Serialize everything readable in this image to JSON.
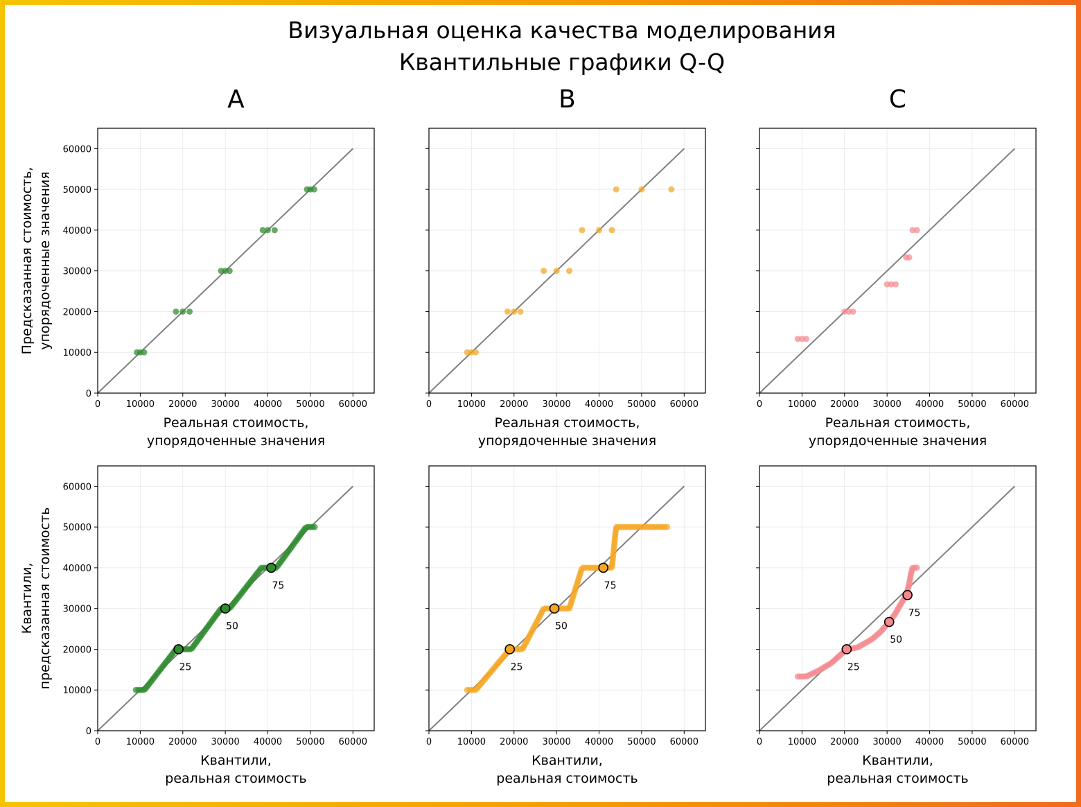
{
  "title": {
    "line1": "Визуальная оценка качества моделирования",
    "line2": "Квантильные графики Q-Q"
  },
  "colors": {
    "A": "#2e8b2e",
    "B": "#f5a623",
    "C": "#f48a90",
    "reference_line": "#808080",
    "grid": "#ebebeb"
  },
  "chart_data": [
    {
      "id": "A-top",
      "type": "scatter",
      "column": "A",
      "row": "top",
      "color_key": "A",
      "xlabel": [
        "Реальная стоимость,",
        "упорядоченные значения"
      ],
      "ylabel": [
        "Предсказанная стоимость,",
        "упорядоченные значения"
      ],
      "xlim": [
        0,
        65000
      ],
      "ylim": [
        0,
        65000
      ],
      "xticks": [
        0,
        10000,
        20000,
        30000,
        40000,
        50000,
        60000
      ],
      "yticks": [
        0,
        10000,
        20000,
        30000,
        40000,
        50000,
        60000
      ],
      "show_ytick_labels": true,
      "grid": true,
      "reference_line": [
        [
          0,
          0
        ],
        [
          60000,
          60000
        ]
      ],
      "points": [
        [
          9200,
          10000
        ],
        [
          10000,
          10000
        ],
        [
          10900,
          10000
        ],
        [
          18400,
          20000
        ],
        [
          20000,
          20000
        ],
        [
          21600,
          20000
        ],
        [
          29000,
          30000
        ],
        [
          30000,
          30000
        ],
        [
          31000,
          30000
        ],
        [
          38800,
          40000
        ],
        [
          40000,
          40000
        ],
        [
          41600,
          40000
        ],
        [
          49200,
          50000
        ],
        [
          50000,
          50000
        ],
        [
          50900,
          50000
        ]
      ]
    },
    {
      "id": "B-top",
      "type": "scatter",
      "column": "B",
      "row": "top",
      "color_key": "B",
      "xlabel": [
        "Реальная стоимость,",
        "упорядоченные значения"
      ],
      "ylabel": [],
      "xlim": [
        0,
        65000
      ],
      "ylim": [
        0,
        65000
      ],
      "xticks": [
        0,
        10000,
        20000,
        30000,
        40000,
        50000,
        60000
      ],
      "yticks": [
        0,
        10000,
        20000,
        30000,
        40000,
        50000,
        60000
      ],
      "show_ytick_labels": false,
      "grid": true,
      "reference_line": [
        [
          0,
          0
        ],
        [
          60000,
          60000
        ]
      ],
      "points": [
        [
          9000,
          10000
        ],
        [
          10000,
          10000
        ],
        [
          11000,
          10000
        ],
        [
          18500,
          20000
        ],
        [
          20000,
          20000
        ],
        [
          21500,
          20000
        ],
        [
          27000,
          30000
        ],
        [
          30000,
          30000
        ],
        [
          33000,
          30000
        ],
        [
          36000,
          40000
        ],
        [
          40000,
          40000
        ],
        [
          43000,
          40000
        ],
        [
          44000,
          50000
        ],
        [
          50000,
          50000
        ],
        [
          57000,
          50000
        ]
      ]
    },
    {
      "id": "C-top",
      "type": "scatter",
      "column": "C",
      "row": "top",
      "color_key": "C",
      "xlabel": [
        "Реальная стоимость,",
        "упорядоченные значения"
      ],
      "ylabel": [],
      "xlim": [
        0,
        65000
      ],
      "ylim": [
        0,
        65000
      ],
      "xticks": [
        0,
        10000,
        20000,
        30000,
        40000,
        50000,
        60000
      ],
      "yticks": [
        0,
        10000,
        20000,
        30000,
        40000,
        50000,
        60000
      ],
      "show_ytick_labels": false,
      "grid": true,
      "reference_line": [
        [
          0,
          0
        ],
        [
          60000,
          60000
        ]
      ],
      "points": [
        [
          9000,
          13300
        ],
        [
          10000,
          13300
        ],
        [
          11000,
          13300
        ],
        [
          20000,
          20000
        ],
        [
          21000,
          20000
        ],
        [
          22000,
          20000
        ],
        [
          30000,
          26700
        ],
        [
          31000,
          26700
        ],
        [
          32000,
          26700
        ],
        [
          34500,
          33300
        ],
        [
          35200,
          33300
        ],
        [
          36000,
          40000
        ],
        [
          37000,
          40000
        ]
      ]
    },
    {
      "id": "A-bottom",
      "type": "scatter",
      "column": "A",
      "row": "bottom",
      "color_key": "A",
      "xlabel": [
        "Квантили,",
        "реальная стоимость"
      ],
      "ylabel": [
        "Квантили,",
        "предсказанная стоимость"
      ],
      "xlim": [
        0,
        65000
      ],
      "ylim": [
        0,
        65000
      ],
      "xticks": [
        0,
        10000,
        20000,
        30000,
        40000,
        50000,
        60000
      ],
      "yticks": [
        0,
        10000,
        20000,
        30000,
        40000,
        50000,
        60000
      ],
      "show_ytick_labels": true,
      "grid": true,
      "reference_line": [
        [
          0,
          0
        ],
        [
          60000,
          60000
        ]
      ],
      "curve": [
        [
          9000,
          10000
        ],
        [
          11000,
          10000
        ],
        [
          18400,
          20000
        ],
        [
          22000,
          20000
        ],
        [
          29000,
          30000
        ],
        [
          31000,
          30000
        ],
        [
          38500,
          40000
        ],
        [
          42000,
          40000
        ],
        [
          49000,
          50000
        ],
        [
          51000,
          50000
        ]
      ],
      "curve_point_count": 110,
      "percentiles": [
        {
          "label": "25",
          "x": 19000,
          "y": 20000
        },
        {
          "label": "50",
          "x": 30000,
          "y": 30000
        },
        {
          "label": "75",
          "x": 40800,
          "y": 40000
        }
      ]
    },
    {
      "id": "B-bottom",
      "type": "scatter",
      "column": "B",
      "row": "bottom",
      "color_key": "B",
      "xlabel": [
        "Квантили,",
        "реальная стоимость"
      ],
      "ylabel": [],
      "xlim": [
        0,
        65000
      ],
      "ylim": [
        0,
        65000
      ],
      "xticks": [
        0,
        10000,
        20000,
        30000,
        40000,
        50000,
        60000
      ],
      "yticks": [
        0,
        10000,
        20000,
        30000,
        40000,
        50000,
        60000
      ],
      "show_ytick_labels": false,
      "grid": true,
      "reference_line": [
        [
          0,
          0
        ],
        [
          60000,
          60000
        ]
      ],
      "curve": [
        [
          9000,
          10000
        ],
        [
          11000,
          10000
        ],
        [
          19000,
          20000
        ],
        [
          22000,
          20000
        ],
        [
          27000,
          30000
        ],
        [
          33000,
          30000
        ],
        [
          36000,
          40000
        ],
        [
          43000,
          40000
        ],
        [
          44000,
          50000
        ],
        [
          56000,
          50000
        ]
      ],
      "curve_point_count": 120,
      "percentiles": [
        {
          "label": "25",
          "x": 19000,
          "y": 20000
        },
        {
          "label": "50",
          "x": 29500,
          "y": 30000
        },
        {
          "label": "75",
          "x": 41000,
          "y": 40000
        }
      ]
    },
    {
      "id": "C-bottom",
      "type": "scatter",
      "column": "C",
      "row": "bottom",
      "color_key": "C",
      "xlabel": [
        "Квантили,",
        "реальная стоимость"
      ],
      "ylabel": [],
      "xlim": [
        0,
        65000
      ],
      "ylim": [
        0,
        65000
      ],
      "xticks": [
        0,
        10000,
        20000,
        30000,
        40000,
        50000,
        60000
      ],
      "yticks": [
        0,
        10000,
        20000,
        30000,
        40000,
        50000,
        60000
      ],
      "show_ytick_labels": false,
      "grid": true,
      "reference_line": [
        [
          0,
          0
        ],
        [
          60000,
          60000
        ]
      ],
      "curve": [
        [
          9000,
          13300
        ],
        [
          11000,
          13300
        ],
        [
          14000,
          14800
        ],
        [
          17000,
          16700
        ],
        [
          20500,
          20000
        ],
        [
          23000,
          20400
        ],
        [
          26500,
          22500
        ],
        [
          28500,
          24300
        ],
        [
          30500,
          26700
        ],
        [
          31800,
          28500
        ],
        [
          33000,
          30700
        ],
        [
          34500,
          33300
        ],
        [
          35200,
          36000
        ],
        [
          35600,
          38500
        ],
        [
          36000,
          40000
        ],
        [
          37000,
          40000
        ]
      ],
      "curve_point_count": 80,
      "percentiles": [
        {
          "label": "25",
          "x": 20500,
          "y": 20000
        },
        {
          "label": "50",
          "x": 30500,
          "y": 26700
        },
        {
          "label": "75",
          "x": 34800,
          "y": 33300
        }
      ]
    }
  ]
}
